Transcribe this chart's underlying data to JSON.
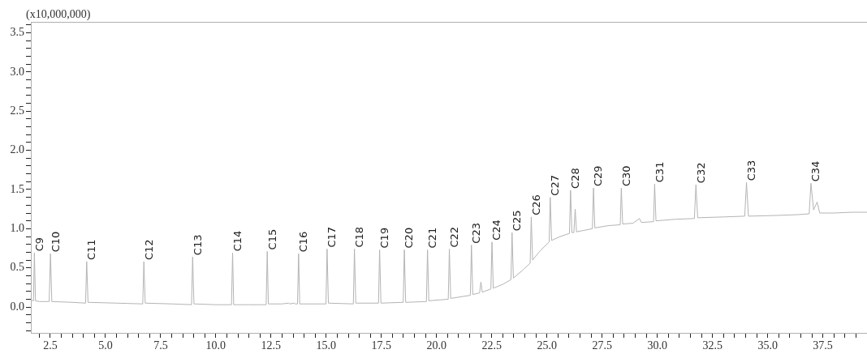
{
  "chart_data": {
    "type": "line",
    "ylabel": "(x10,000,000)",
    "color": "#b4b4b4",
    "marker": "none",
    "line_style": "solid",
    "grid": false,
    "legend": false,
    "xlim": [
      1.62,
      39.5
    ],
    "ylim": [
      -0.33,
      3.64
    ],
    "xticks": [
      {
        "value": 2.0,
        "label": null
      },
      {
        "value": 2.5,
        "label": "2.5"
      },
      {
        "value": 3.0,
        "label": null
      },
      {
        "value": 3.5,
        "label": null
      },
      {
        "value": 4.0,
        "label": null
      },
      {
        "value": 4.5,
        "label": null
      },
      {
        "value": 5.0,
        "label": "5.0"
      },
      {
        "value": 5.5,
        "label": null
      },
      {
        "value": 6.0,
        "label": null
      },
      {
        "value": 6.5,
        "label": null
      },
      {
        "value": 7.0,
        "label": null
      },
      {
        "value": 7.5,
        "label": "7.5"
      },
      {
        "value": 8.0,
        "label": null
      },
      {
        "value": 8.5,
        "label": null
      },
      {
        "value": 9.0,
        "label": null
      },
      {
        "value": 9.5,
        "label": null
      },
      {
        "value": 10.0,
        "label": "10.0"
      },
      {
        "value": 10.5,
        "label": null
      },
      {
        "value": 11.0,
        "label": null
      },
      {
        "value": 11.5,
        "label": null
      },
      {
        "value": 12.0,
        "label": null
      },
      {
        "value": 12.5,
        "label": "12.5"
      },
      {
        "value": 13.0,
        "label": null
      },
      {
        "value": 13.5,
        "label": null
      },
      {
        "value": 14.0,
        "label": null
      },
      {
        "value": 14.5,
        "label": null
      },
      {
        "value": 15.0,
        "label": "15.0"
      },
      {
        "value": 15.5,
        "label": null
      },
      {
        "value": 16.0,
        "label": null
      },
      {
        "value": 16.5,
        "label": null
      },
      {
        "value": 17.0,
        "label": null
      },
      {
        "value": 17.5,
        "label": "17.5"
      },
      {
        "value": 18.0,
        "label": null
      },
      {
        "value": 18.5,
        "label": null
      },
      {
        "value": 19.0,
        "label": null
      },
      {
        "value": 19.5,
        "label": null
      },
      {
        "value": 20.0,
        "label": "20.0"
      },
      {
        "value": 20.5,
        "label": null
      },
      {
        "value": 21.0,
        "label": null
      },
      {
        "value": 21.5,
        "label": null
      },
      {
        "value": 22.0,
        "label": null
      },
      {
        "value": 22.5,
        "label": "22.5"
      },
      {
        "value": 23.0,
        "label": null
      },
      {
        "value": 23.5,
        "label": null
      },
      {
        "value": 24.0,
        "label": null
      },
      {
        "value": 24.5,
        "label": null
      },
      {
        "value": 25.0,
        "label": "25.0"
      },
      {
        "value": 25.5,
        "label": null
      },
      {
        "value": 26.0,
        "label": null
      },
      {
        "value": 26.5,
        "label": null
      },
      {
        "value": 27.0,
        "label": null
      },
      {
        "value": 27.5,
        "label": "27.5"
      },
      {
        "value": 28.0,
        "label": null
      },
      {
        "value": 28.5,
        "label": null
      },
      {
        "value": 29.0,
        "label": null
      },
      {
        "value": 29.5,
        "label": null
      },
      {
        "value": 30.0,
        "label": "30.0"
      },
      {
        "value": 30.5,
        "label": null
      },
      {
        "value": 31.0,
        "label": null
      },
      {
        "value": 31.5,
        "label": null
      },
      {
        "value": 32.0,
        "label": null
      },
      {
        "value": 32.5,
        "label": "32.5"
      },
      {
        "value": 33.0,
        "label": null
      },
      {
        "value": 33.5,
        "label": null
      },
      {
        "value": 34.0,
        "label": null
      },
      {
        "value": 34.5,
        "label": null
      },
      {
        "value": 35.0,
        "label": "35.0"
      },
      {
        "value": 35.5,
        "label": null
      },
      {
        "value": 36.0,
        "label": null
      },
      {
        "value": 36.5,
        "label": null
      },
      {
        "value": 37.0,
        "label": null
      },
      {
        "value": 37.5,
        "label": "37.5"
      },
      {
        "value": 38.0,
        "label": null
      },
      {
        "value": 38.5,
        "label": null
      },
      {
        "value": 39.0,
        "label": null
      }
    ],
    "yticks": [
      {
        "value": -0.3,
        "label": null
      },
      {
        "value": -0.2,
        "label": null
      },
      {
        "value": -0.1,
        "label": null
      },
      {
        "value": 0.0,
        "label": "0.0"
      },
      {
        "value": 0.1,
        "label": null
      },
      {
        "value": 0.2,
        "label": null
      },
      {
        "value": 0.3,
        "label": null
      },
      {
        "value": 0.4,
        "label": null
      },
      {
        "value": 0.5,
        "label": "0.5"
      },
      {
        "value": 0.6,
        "label": null
      },
      {
        "value": 0.7,
        "label": null
      },
      {
        "value": 0.8,
        "label": null
      },
      {
        "value": 0.9,
        "label": null
      },
      {
        "value": 1.0,
        "label": "1.0"
      },
      {
        "value": 1.1,
        "label": null
      },
      {
        "value": 1.2,
        "label": null
      },
      {
        "value": 1.3,
        "label": null
      },
      {
        "value": 1.4,
        "label": null
      },
      {
        "value": 1.5,
        "label": "1.5"
      },
      {
        "value": 1.6,
        "label": null
      },
      {
        "value": 1.7,
        "label": null
      },
      {
        "value": 1.8,
        "label": null
      },
      {
        "value": 1.9,
        "label": null
      },
      {
        "value": 2.0,
        "label": "2.0"
      },
      {
        "value": 2.1,
        "label": null
      },
      {
        "value": 2.2,
        "label": null
      },
      {
        "value": 2.3,
        "label": null
      },
      {
        "value": 2.4,
        "label": null
      },
      {
        "value": 2.5,
        "label": "2.5"
      },
      {
        "value": 2.6,
        "label": null
      },
      {
        "value": 2.7,
        "label": null
      },
      {
        "value": 2.8,
        "label": null
      },
      {
        "value": 2.9,
        "label": null
      },
      {
        "value": 3.0,
        "label": "3.0"
      },
      {
        "value": 3.1,
        "label": null
      },
      {
        "value": 3.2,
        "label": null
      },
      {
        "value": 3.3,
        "label": null
      },
      {
        "value": 3.4,
        "label": null
      },
      {
        "value": 3.5,
        "label": "3.5"
      },
      {
        "value": 3.6,
        "label": null
      }
    ],
    "x": [
      1.62,
      1.74,
      1.78,
      1.83,
      2.0,
      2.45,
      2.51,
      2.57,
      3.5,
      4.1,
      4.15,
      4.21,
      5.5,
      6.69,
      6.74,
      6.8,
      8.0,
      8.9,
      8.95,
      9.01,
      10.0,
      10.71,
      10.76,
      10.81,
      11.5,
      12.28,
      12.33,
      12.38,
      13.0,
      13.3,
      13.35,
      13.55,
      13.6,
      13.7,
      13.75,
      13.8,
      14.99,
      15.04,
      15.1,
      16.23,
      16.28,
      16.34,
      17.37,
      17.42,
      17.48,
      18.49,
      18.54,
      18.6,
      19.54,
      19.59,
      19.65,
      20.53,
      20.58,
      20.64,
      21.53,
      21.58,
      21.64,
      21.95,
      22.01,
      22.07,
      22.46,
      22.51,
      22.57,
      23.0,
      23.37,
      23.42,
      23.48,
      23.9,
      24.24,
      24.29,
      24.35,
      24.7,
      25.1,
      25.15,
      25.21,
      25.6,
      26.02,
      26.07,
      26.13,
      26.22,
      26.28,
      26.34,
      26.7,
      27.06,
      27.11,
      27.17,
      27.8,
      28.32,
      28.37,
      28.43,
      28.9,
      29.19,
      29.28,
      29.83,
      29.88,
      29.94,
      30.8,
      31.68,
      31.75,
      31.83,
      33.0,
      33.96,
      34.04,
      34.13,
      35.5,
      36.4,
      36.88,
      36.96,
      37.08,
      37.24,
      37.36,
      38.0,
      38.8,
      39.5
    ],
    "values": [
      0.09,
      0.08,
      0.69,
      0.08,
      0.07,
      0.07,
      0.68,
      0.07,
      0.06,
      0.05,
      0.58,
      0.06,
      0.05,
      0.04,
      0.58,
      0.05,
      0.04,
      0.03,
      0.64,
      0.04,
      0.03,
      0.03,
      0.69,
      0.03,
      0.03,
      0.03,
      0.71,
      0.04,
      0.04,
      0.05,
      0.04,
      0.05,
      0.04,
      0.04,
      0.68,
      0.04,
      0.04,
      0.74,
      0.05,
      0.04,
      0.74,
      0.05,
      0.05,
      0.73,
      0.05,
      0.06,
      0.73,
      0.06,
      0.07,
      0.73,
      0.08,
      0.1,
      0.74,
      0.11,
      0.15,
      0.79,
      0.16,
      0.18,
      0.32,
      0.19,
      0.23,
      0.83,
      0.24,
      0.29,
      0.35,
      0.95,
      0.37,
      0.47,
      0.56,
      1.15,
      0.6,
      0.72,
      0.83,
      1.4,
      0.85,
      0.9,
      0.94,
      1.49,
      0.95,
      0.95,
      1.25,
      0.96,
      0.98,
      1.0,
      1.52,
      1.01,
      1.04,
      1.05,
      1.52,
      1.06,
      1.07,
      1.13,
      1.08,
      1.09,
      1.57,
      1.1,
      1.12,
      1.13,
      1.56,
      1.14,
      1.15,
      1.16,
      1.59,
      1.16,
      1.17,
      1.18,
      1.19,
      1.58,
      1.24,
      1.34,
      1.2,
      1.2,
      1.21,
      1.21
    ],
    "annotations": [
      {
        "text": "C9",
        "x": 1.78,
        "y": 0.69
      },
      {
        "text": "C10",
        "x": 2.51,
        "y": 0.68
      },
      {
        "text": "C11",
        "x": 4.15,
        "y": 0.58
      },
      {
        "text": "C12",
        "x": 6.74,
        "y": 0.58
      },
      {
        "text": "C13",
        "x": 8.95,
        "y": 0.64
      },
      {
        "text": "C14",
        "x": 10.76,
        "y": 0.69
      },
      {
        "text": "C15",
        "x": 12.33,
        "y": 0.71
      },
      {
        "text": "C16",
        "x": 13.75,
        "y": 0.68
      },
      {
        "text": "C17",
        "x": 15.04,
        "y": 0.74
      },
      {
        "text": "C18",
        "x": 16.28,
        "y": 0.74
      },
      {
        "text": "C19",
        "x": 17.42,
        "y": 0.73
      },
      {
        "text": "C20",
        "x": 18.54,
        "y": 0.73
      },
      {
        "text": "C21",
        "x": 19.59,
        "y": 0.73
      },
      {
        "text": "C22",
        "x": 20.58,
        "y": 0.74
      },
      {
        "text": "C23",
        "x": 21.58,
        "y": 0.79
      },
      {
        "text": "C24",
        "x": 22.51,
        "y": 0.83
      },
      {
        "text": "C25",
        "x": 23.42,
        "y": 0.95
      },
      {
        "text": "C26",
        "x": 24.29,
        "y": 1.15
      },
      {
        "text": "C27",
        "x": 25.15,
        "y": 1.4
      },
      {
        "text": "C28",
        "x": 26.07,
        "y": 1.49
      },
      {
        "text": "C29",
        "x": 27.11,
        "y": 1.52
      },
      {
        "text": "C30",
        "x": 28.37,
        "y": 1.52
      },
      {
        "text": "C31",
        "x": 29.88,
        "y": 1.57
      },
      {
        "text": "C32",
        "x": 31.75,
        "y": 1.56
      },
      {
        "text": "C33",
        "x": 34.04,
        "y": 1.59
      },
      {
        "text": "C34",
        "x": 36.96,
        "y": 1.58
      }
    ]
  }
}
